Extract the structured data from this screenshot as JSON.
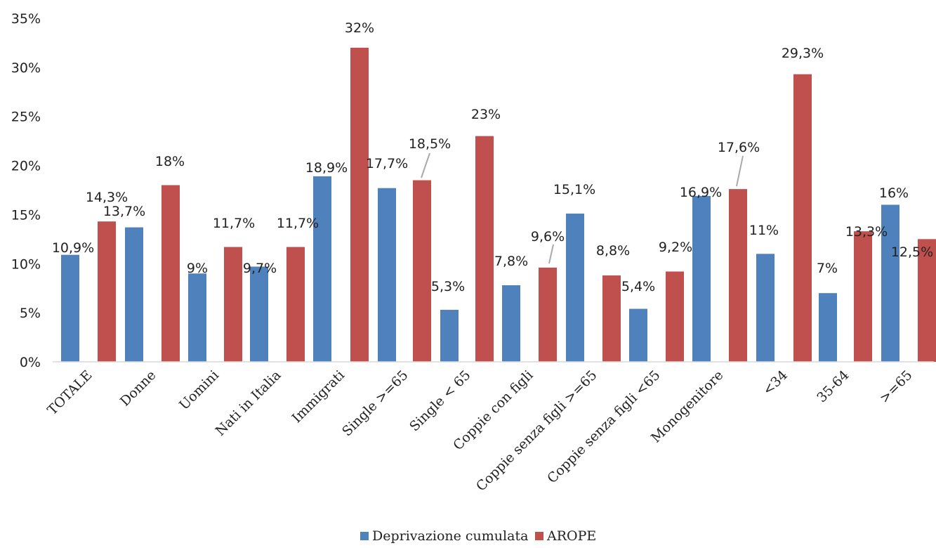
{
  "chart_data": {
    "type": "bar",
    "title": "",
    "xlabel": "",
    "ylabel": "",
    "ylim": [
      0,
      35
    ],
    "y_ticks": [
      "0%",
      "5%",
      "10%",
      "15%",
      "20%",
      "25%",
      "30%",
      "35%"
    ],
    "grid": false,
    "legend_position": "bottom-center",
    "categories": [
      "TOTALE",
      "Donne",
      "Uomini",
      "Nati in Italia",
      "Immigrati",
      "Single >=65",
      "Single < 65",
      "Coppie con figli",
      "Coppie senza figli >=65",
      "Coppie senza figli <65",
      "Monogenitore",
      "<34",
      "35-64",
      ">=65"
    ],
    "series": [
      {
        "name": "Deprivazione cumulata",
        "color": "#4f81bd",
        "values": [
          10.9,
          13.7,
          9,
          9.7,
          18.9,
          17.7,
          5.3,
          7.8,
          15.1,
          5.4,
          16.9,
          11,
          7,
          16
        ],
        "labels": [
          "10,9%",
          "13,7%",
          "9%",
          "9,7%",
          "18,9%",
          "17,7%",
          "5,3%",
          "7,8%",
          "15,1%",
          "5,4%",
          "16,9%",
          "11%",
          "7%",
          "16%"
        ]
      },
      {
        "name": "AROPE",
        "color": "#c0504d",
        "values": [
          14.3,
          18,
          11.7,
          11.7,
          32,
          18.5,
          23,
          9.6,
          8.8,
          9.2,
          17.6,
          29.3,
          13.3,
          12.5
        ],
        "labels": [
          "14,3%",
          "18%",
          "11,7%",
          "11,7%",
          "32%",
          "18,5%",
          "23%",
          "9,6%",
          "8,8%",
          "9,2%",
          "17,6%",
          "29,3%",
          "13,3%",
          "12,5%"
        ]
      }
    ]
  }
}
